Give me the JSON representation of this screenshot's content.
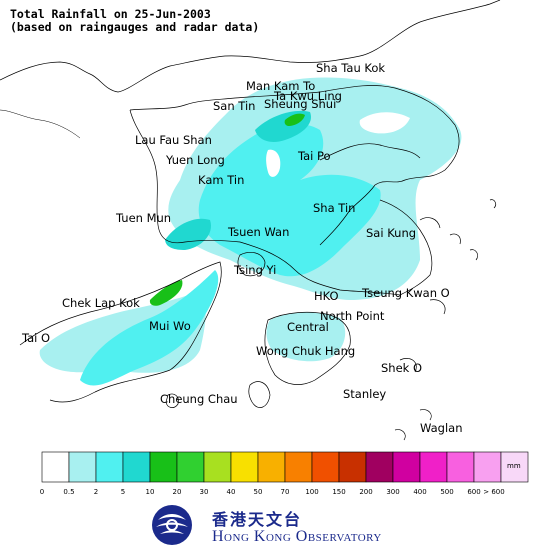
{
  "title_line1": "Total Rainfall on 25-Jun-2003",
  "title_line2": "(based on raingauges and radar data)",
  "places": [
    {
      "id": "sha-tau-kok",
      "label": "Sha Tau Kok"
    },
    {
      "id": "man-kam-to",
      "label": "Man Kam To"
    },
    {
      "id": "ta-kwu-ling",
      "label": "Ta Kwu Ling"
    },
    {
      "id": "san-tin",
      "label": "San Tin"
    },
    {
      "id": "sheung-shui",
      "label": "Sheung Shui"
    },
    {
      "id": "lau-fau-shan",
      "label": "Lau Fau Shan"
    },
    {
      "id": "yuen-long",
      "label": "Yuen Long"
    },
    {
      "id": "tai-po",
      "label": "Tai Po"
    },
    {
      "id": "kam-tin",
      "label": "Kam Tin"
    },
    {
      "id": "tuen-mun",
      "label": "Tuen Mun"
    },
    {
      "id": "sha-tin",
      "label": "Sha Tin"
    },
    {
      "id": "tsuen-wan",
      "label": "Tsuen Wan"
    },
    {
      "id": "sai-kung",
      "label": "Sai Kung"
    },
    {
      "id": "tsing-yi",
      "label": "Tsing Yi"
    },
    {
      "id": "chek-lap-kok",
      "label": "Chek Lap Kok"
    },
    {
      "id": "hko",
      "label": "HKO"
    },
    {
      "id": "tseung-kwan-o",
      "label": "Tseung Kwan O"
    },
    {
      "id": "mui-wo",
      "label": "Mui Wo"
    },
    {
      "id": "north-point",
      "label": "North Point"
    },
    {
      "id": "central",
      "label": "Central"
    },
    {
      "id": "tai-o",
      "label": "Tai O"
    },
    {
      "id": "wong-chuk-hang",
      "label": "Wong Chuk Hang"
    },
    {
      "id": "shek-o",
      "label": "Shek O"
    },
    {
      "id": "stanley",
      "label": "Stanley"
    },
    {
      "id": "cheung-chau",
      "label": "Cheung Chau"
    },
    {
      "id": "waglan",
      "label": "Waglan"
    }
  ],
  "legend": {
    "unit": "mm",
    "boundaries": [
      "0",
      "0.5",
      "2",
      "5",
      "10",
      "20",
      "30",
      "40",
      "50",
      "70",
      "100",
      "150",
      "200",
      "300",
      "400",
      "500",
      "600",
      "> 600"
    ],
    "colors": [
      "#ffffff",
      "#a8f0f0",
      "#50f0f0",
      "#20d8d0",
      "#18c018",
      "#30d030",
      "#a8e020",
      "#f8e000",
      "#f8b000",
      "#f88000",
      "#f05000",
      "#c83000",
      "#a00060",
      "#d000a0",
      "#f020c8",
      "#f860e0",
      "#f8a0f0",
      "#f8d8f8"
    ]
  },
  "logo": {
    "chinese": "香港天文台",
    "english": "Hong Kong Observatory"
  }
}
